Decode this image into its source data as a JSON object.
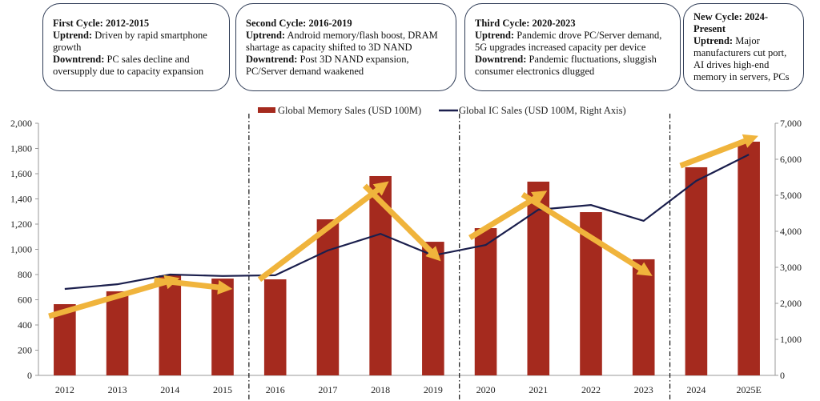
{
  "boxes": [
    {
      "title": "First Cycle: 2012-2015",
      "up_label": "Uptrend:",
      "up": " Driven by rapid smartphone growth",
      "down_label": "Downtrend:",
      "down": " PC sales decline and oversupply due to capacity expansion"
    },
    {
      "title": "Second Cycle: 2016-2019",
      "up_label": "Uptrend:",
      "up": " Android memory/flash boost, DRAM shartage as capacity shifted to 3D NAND",
      "down_label": "Downtrend:",
      "down": " Post 3D NAND expansion, PC/Server demand waakened"
    },
    {
      "title": "Third Cycle: 2020-2023",
      "up_label": "Uptrend:",
      "up": " Pandemic drove PC/Server demand, 5G upgrades increased capacity per device",
      "down_label": "Downtrend:",
      "down": " Pandemic fluctuations, sluggish consumer electronics dlugged"
    },
    {
      "title": "New Cycle: 2024-Present",
      "up_label": "Uptrend:",
      "up": " Major manufacturers cut port, AI drives high-end memory in servers, PCs"
    }
  ],
  "chart_data": {
    "type": "bar+line",
    "categories": [
      "2012",
      "2013",
      "2014",
      "2015",
      "2016",
      "2017",
      "2018",
      "2019",
      "2020",
      "2021",
      "2022",
      "2023",
      "2024",
      "2025E"
    ],
    "series": [
      {
        "name": "Global Memory Sales (USD 100M)",
        "type": "bar",
        "axis": "left",
        "color": "#a52a1e",
        "values": [
          565,
          667,
          794,
          768,
          762,
          1238,
          1581,
          1060,
          1168,
          1537,
          1295,
          921,
          1651,
          1854
        ]
      },
      {
        "name": "Global IC Sales (USD 100M, Right Axis)",
        "type": "line",
        "axis": "right",
        "color": "#1b1f4d",
        "values": [
          2400,
          2530,
          2800,
          2760,
          2780,
          3470,
          3930,
          3330,
          3620,
          4600,
          4730,
          4290,
          5400,
          6130
        ]
      }
    ],
    "left_axis": {
      "range": [
        0,
        2000
      ],
      "ticks": [
        "0",
        "200",
        "400",
        "600",
        "800",
        "1,000",
        "1,200",
        "1,400",
        "1,600",
        "1,800",
        "2,000"
      ]
    },
    "right_axis": {
      "range": [
        0,
        7000
      ],
      "ticks": [
        "0",
        "1,000",
        "2,000",
        "3,000",
        "4,000",
        "5,000",
        "6,000",
        "7,000"
      ]
    },
    "cycle_dividers_after": [
      "2015",
      "2019",
      "2023"
    ],
    "trend_arrows": [
      {
        "from": [
          "2012",
          470
        ],
        "to": [
          "2014",
          756
        ]
      },
      {
        "from": [
          "2014",
          756
        ],
        "to": [
          "2015",
          692
        ]
      },
      {
        "from": [
          "2016",
          760
        ],
        "to": [
          "2018",
          1505
        ]
      },
      {
        "from": [
          "2018",
          1505
        ],
        "to": [
          "2019",
          946
        ]
      },
      {
        "from": [
          "2020",
          1092
        ],
        "to": [
          "2021",
          1435
        ]
      },
      {
        "from": [
          "2021",
          1435
        ],
        "to": [
          "2023",
          819
        ]
      },
      {
        "from": [
          "2024",
          1663
        ],
        "to": [
          "2025E",
          1879
        ]
      }
    ],
    "arrow_color": "#f0b43c",
    "legend_placement": "top-center",
    "grid": false
  }
}
